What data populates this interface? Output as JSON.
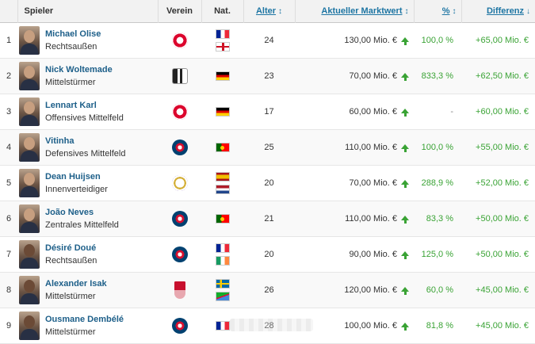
{
  "table": {
    "headers": {
      "rank": "#",
      "player": "Spieler",
      "club": "Verein",
      "nat": "Nat.",
      "age": "Alter",
      "market_value": "Aktueller Marktwert",
      "percent": "%",
      "difference": "Differenz"
    },
    "sort_icons": {
      "age": "↕",
      "market_value": "↕",
      "percent": "↕",
      "difference": "↓"
    },
    "rows": [
      {
        "rank": "1",
        "name": "Michael Olise",
        "position": "Rechtsaußen",
        "club_icon": "bayern-crest-icon",
        "flags": [
          "flag-fr",
          "flag-en"
        ],
        "age": "24",
        "market_value": "130,00 Mio. €",
        "percent": "100,0 %",
        "difference": "+65,00 Mio. €"
      },
      {
        "rank": "2",
        "name": "Nick Woltemade",
        "position": "Mittelstürmer",
        "club_icon": "newcastle-crest-icon",
        "flags": [
          "flag-de"
        ],
        "age": "23",
        "market_value": "70,00 Mio. €",
        "percent": "833,3 %",
        "difference": "+62,50 Mio. €"
      },
      {
        "rank": "3",
        "name": "Lennart Karl",
        "position": "Offensives Mittelfeld",
        "club_icon": "bayern-crest-icon",
        "flags": [
          "flag-de"
        ],
        "age": "17",
        "market_value": "60,00 Mio. €",
        "percent": "-",
        "difference": "+60,00 Mio. €"
      },
      {
        "rank": "4",
        "name": "Vitinha",
        "position": "Defensives Mittelfeld",
        "club_icon": "psg-crest-icon",
        "flags": [
          "flag-pt"
        ],
        "age": "25",
        "market_value": "110,00 Mio. €",
        "percent": "100,0 %",
        "difference": "+55,00 Mio. €"
      },
      {
        "rank": "5",
        "name": "Dean Huijsen",
        "position": "Innenverteidiger",
        "club_icon": "real-madrid-crest-icon",
        "flags": [
          "flag-es",
          "flag-nl"
        ],
        "age": "20",
        "market_value": "70,00 Mio. €",
        "percent": "288,9 %",
        "difference": "+52,00 Mio. €"
      },
      {
        "rank": "6",
        "name": "João Neves",
        "position": "Zentrales Mittelfeld",
        "club_icon": "psg-crest-icon",
        "flags": [
          "flag-pt"
        ],
        "age": "21",
        "market_value": "110,00 Mio. €",
        "percent": "83,3 %",
        "difference": "+50,00 Mio. €"
      },
      {
        "rank": "7",
        "name": "Désiré Doué",
        "position": "Rechtsaußen",
        "club_icon": "psg-crest-icon",
        "flags": [
          "flag-fr",
          "flag-ie"
        ],
        "age": "20",
        "market_value": "90,00 Mio. €",
        "percent": "125,0 %",
        "difference": "+50,00 Mio. €"
      },
      {
        "rank": "8",
        "name": "Alexander Isak",
        "position": "Mittelstürmer",
        "club_icon": "liverpool-crest-icon",
        "flags": [
          "flag-se",
          "flag-er"
        ],
        "age": "26",
        "market_value": "120,00 Mio. €",
        "percent": "60,0 %",
        "difference": "+45,00 Mio. €"
      },
      {
        "rank": "9",
        "name": "Ousmane Dembélé",
        "position": "Mittelstürmer",
        "club_icon": "psg-crest-icon",
        "flags": [
          "flag-fr"
        ],
        "age": "28",
        "market_value": "100,00 Mio. €",
        "percent": "81,8 %",
        "difference": "+45,00 Mio. €"
      }
    ],
    "colors": {
      "link": "#1d5f89",
      "positive": "#3aa335",
      "header_bg": "#f2f2f2"
    }
  }
}
